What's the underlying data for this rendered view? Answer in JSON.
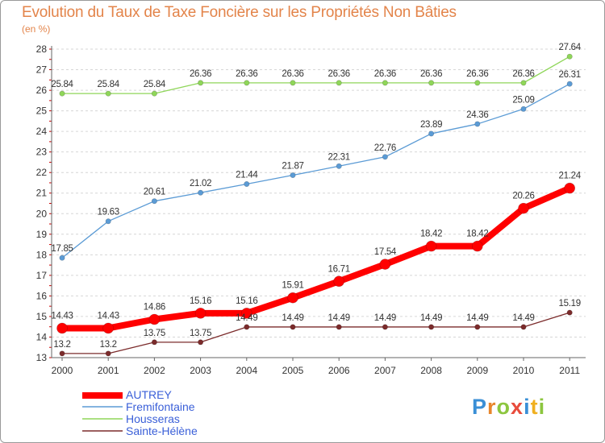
{
  "header": {
    "title": "Evolution du Taux de Taxe Foncière sur les Propriétés Non Bâties",
    "unit": "(en %)"
  },
  "logo": {
    "text": "Proxiti"
  },
  "chart_data": {
    "type": "line",
    "title": "Evolution du Taux de Taxe Foncière sur les Propriétés Non Bâties",
    "ylabel": "(en %)",
    "xlabel": "",
    "x": [
      "2000",
      "2001",
      "2002",
      "2003",
      "2004",
      "2005",
      "2006",
      "2007",
      "2008",
      "2009",
      "2010",
      "2011"
    ],
    "ylim": [
      13,
      28
    ],
    "yticks": [
      "13",
      "14",
      "15",
      "16",
      "17",
      "18",
      "19",
      "20",
      "21",
      "22",
      "23",
      "24",
      "25",
      "26",
      "27",
      "28"
    ],
    "grid": "horizontal dashed",
    "legend_position": "bottom-left",
    "series": [
      {
        "name": "AUTREY",
        "color": "#ff0000",
        "values": [
          14.43,
          14.43,
          14.86,
          15.16,
          15.16,
          15.91,
          16.71,
          17.54,
          18.42,
          18.42,
          20.26,
          21.24
        ],
        "labels": [
          "14.43",
          "14.43",
          "14.86",
          "15.16",
          "15.16",
          "15.91",
          "16.71",
          "17.54",
          "18.42",
          "18.42",
          "20.26",
          "21.24"
        ]
      },
      {
        "name": "Fremifontaine",
        "color": "#5b9bd5",
        "values": [
          17.85,
          19.63,
          20.61,
          21.02,
          21.44,
          21.87,
          22.31,
          22.76,
          23.89,
          24.36,
          25.09,
          26.31
        ],
        "labels": [
          "17.85",
          "19.63",
          "20.61",
          "21.02",
          "21.44",
          "21.87",
          "22.31",
          "22.76",
          "23.89",
          "24.36",
          "25.09",
          "26.31"
        ]
      },
      {
        "name": "Housseras",
        "color": "#8fd659",
        "values": [
          25.84,
          25.84,
          25.84,
          26.36,
          26.36,
          26.36,
          26.36,
          26.36,
          26.36,
          26.36,
          26.36,
          27.64
        ],
        "labels": [
          "25.84",
          "25.84",
          "25.84",
          "26.36",
          "26.36",
          "26.36",
          "26.36",
          "26.36",
          "26.36",
          "26.36",
          "26.36",
          "27.64"
        ]
      },
      {
        "name": "Sainte-Hélène",
        "color": "#7b2b2b",
        "values": [
          13.2,
          13.2,
          13.75,
          13.75,
          14.49,
          14.49,
          14.49,
          14.49,
          14.49,
          14.49,
          14.49,
          15.19
        ],
        "labels": [
          "13.2",
          "13.2",
          "13.75",
          "13.75",
          "14.49",
          "14.49",
          "14.49",
          "14.49",
          "14.49",
          "14.49",
          "14.49",
          "15.19"
        ]
      }
    ]
  }
}
